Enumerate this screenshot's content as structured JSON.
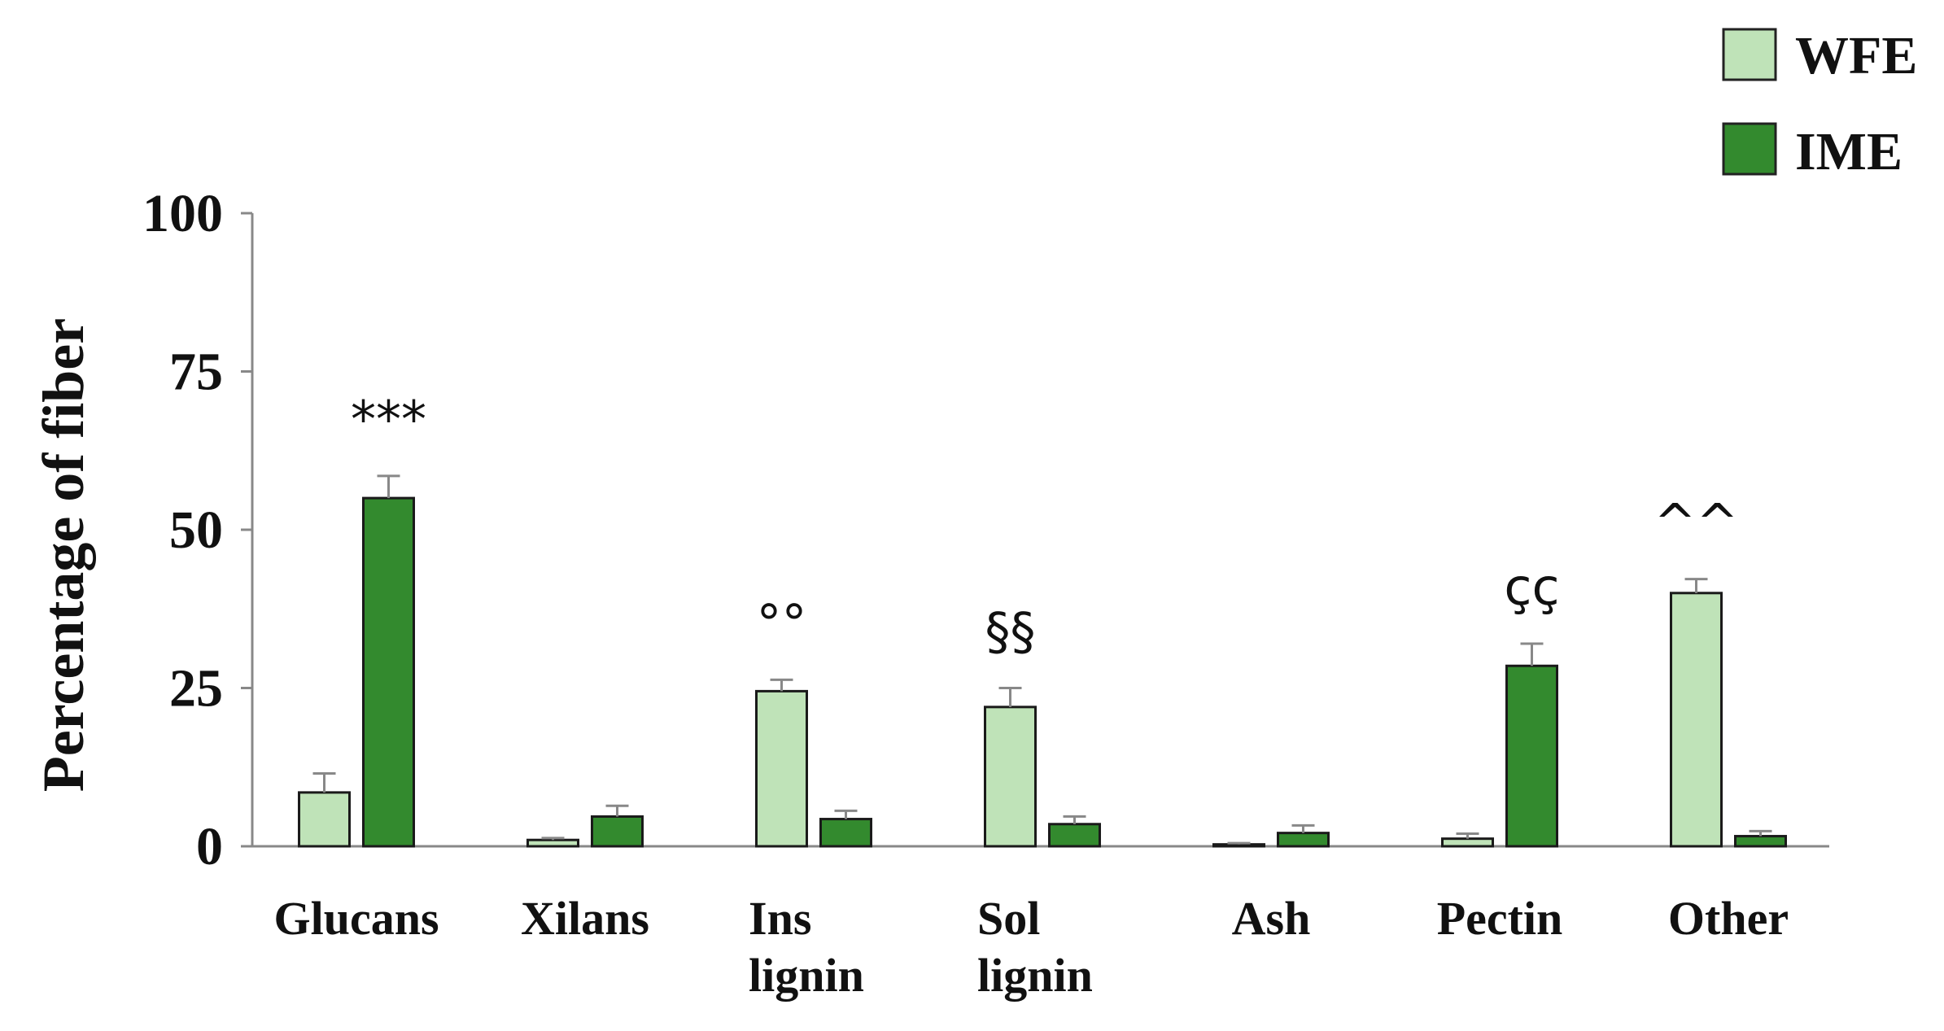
{
  "chart_data": {
    "type": "bar",
    "title": "",
    "xlabel": "",
    "ylabel": "Percentage of fiber",
    "ylim": [
      0,
      100
    ],
    "yticks": [
      "0",
      "25",
      "50",
      "75",
      "100"
    ],
    "categories": [
      [
        "Glucans"
      ],
      [
        "Xilans"
      ],
      [
        "Ins",
        "lignin"
      ],
      [
        "Sol",
        "lignin"
      ],
      [
        "Ash"
      ],
      [
        "Pectin"
      ],
      [
        "Other"
      ]
    ],
    "series": [
      {
        "name": "WFE",
        "color": "#bfe3b8",
        "values": [
          8.5,
          1.0,
          24.5,
          22.0,
          0.3,
          1.2,
          40.0
        ],
        "errors": [
          3.0,
          0.3,
          1.8,
          3.0,
          0.2,
          0.8,
          2.2
        ]
      },
      {
        "name": "IME",
        "color": "#338a2e",
        "values": [
          55.0,
          4.7,
          4.3,
          3.5,
          2.1,
          28.5,
          1.6
        ],
        "errors": [
          3.5,
          1.7,
          1.3,
          1.2,
          1.2,
          3.5,
          0.8
        ]
      }
    ],
    "annotations": [
      "***",
      "",
      "°°",
      "§§",
      "",
      "çç",
      "^^"
    ],
    "annotation_series": [
      1,
      1,
      0,
      0,
      1,
      1,
      0
    ],
    "legend": "top-right",
    "grid": false
  }
}
